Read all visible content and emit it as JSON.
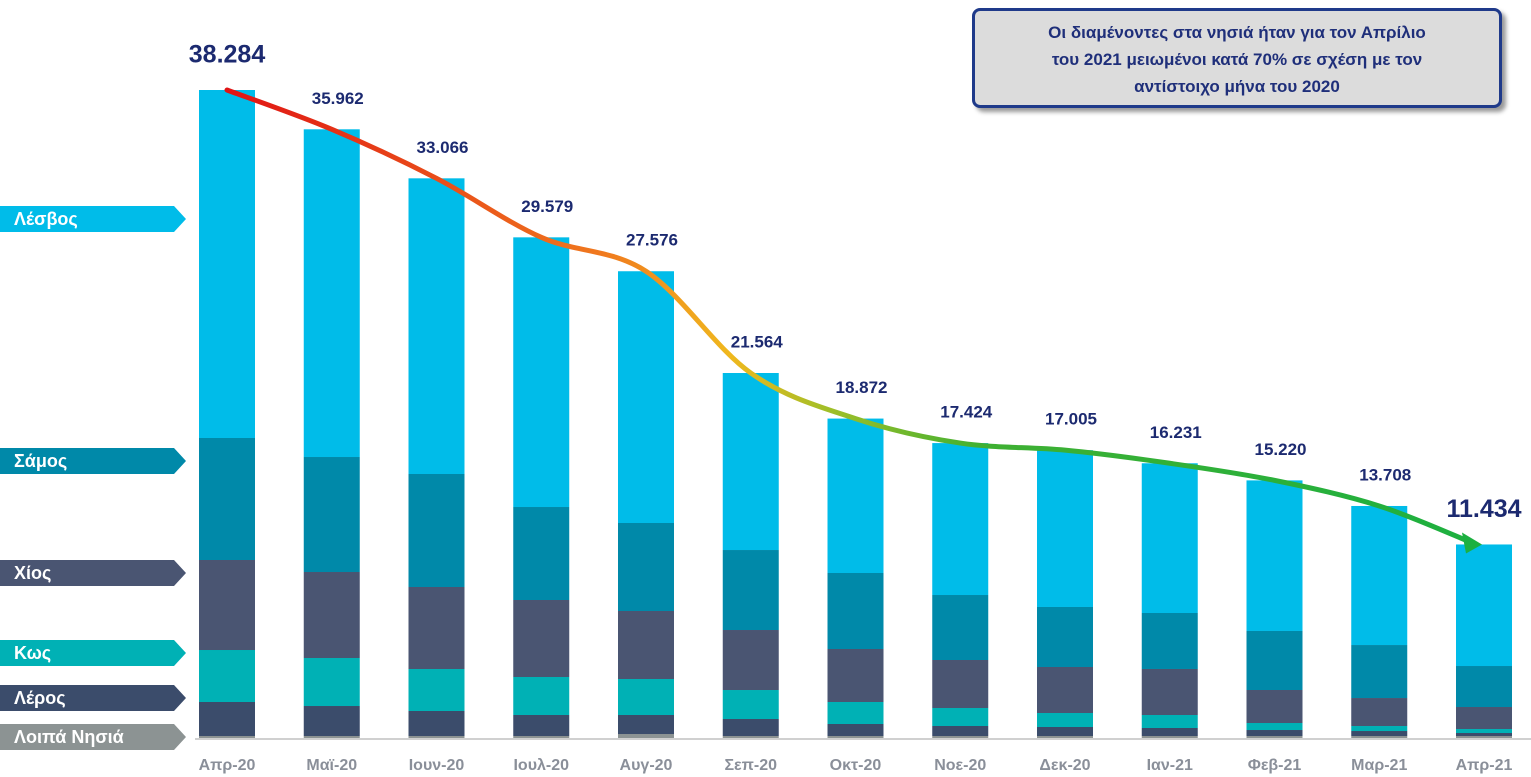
{
  "chart_data": {
    "type": "stacked_bar",
    "categories": [
      "Απρ-20",
      "Μαϊ-20",
      "Ιουν-20",
      "Ιουλ-20",
      "Αυγ-20",
      "Σεπ-20",
      "Οκτ-20",
      "Νοε-20",
      "Δεκ-20",
      "Ιαν-21",
      "Φεβ-21",
      "Μαρ-21",
      "Απρ-21"
    ],
    "series": [
      {
        "name": "Λοιπά Νησιά",
        "color": "#8c9393",
        "values": [
          118,
          118,
          118,
          118,
          236,
          118,
          118,
          118,
          118,
          118,
          118,
          118,
          118
        ]
      },
      {
        "name": "Λέρος",
        "color": "#3b4c6b",
        "values": [
          2009,
          1772,
          1477,
          1241,
          1123,
          1004,
          709,
          591,
          532,
          473,
          354,
          295,
          177
        ]
      },
      {
        "name": "Κως",
        "color": "#00b1b5",
        "values": [
          3072,
          2836,
          2481,
          2245,
          2127,
          1713,
          1300,
          1063,
          827,
          768,
          414,
          295,
          236
        ]
      },
      {
        "name": "Χίος",
        "color": "#4a5572",
        "values": [
          5317,
          5081,
          4845,
          4549,
          4017,
          3545,
          3131,
          2836,
          2718,
          2718,
          1950,
          1654,
          1300
        ]
      },
      {
        "name": "Σάμος",
        "color": "#0089a9",
        "values": [
          7208,
          6794,
          6676,
          5494,
          5199,
          4726,
          4490,
          3840,
          3545,
          3308,
          3486,
          3131,
          2422
        ]
      },
      {
        "name": "Λέσβος",
        "color": "#00bce9",
        "values": [
          20560,
          19361,
          17469,
          15932,
          14874,
          10458,
          9124,
          8976,
          9265,
          8846,
          8898,
          8215,
          7181
        ]
      }
    ],
    "totals": {
      "values": [
        38284,
        35962,
        33066,
        29579,
        27576,
        21564,
        18872,
        17424,
        17005,
        16231,
        15220,
        13708,
        11434
      ],
      "value_labels": [
        "38.284",
        "35.962",
        "33.066",
        "29.579",
        "27.576",
        "21.564",
        "18.872",
        "17.424",
        "17.005",
        "16.231",
        "15.220",
        "13.708",
        "11.434"
      ]
    },
    "annotation": [
      "Οι διαμένοντες στα νησιά ήταν για τον Απρίλιο",
      "του 2021 μειωμένοι κατά 70% σε σχέση με τον",
      "αντίστοιχο μήνα του 2020"
    ],
    "ylim": [
      0,
      38284
    ]
  }
}
